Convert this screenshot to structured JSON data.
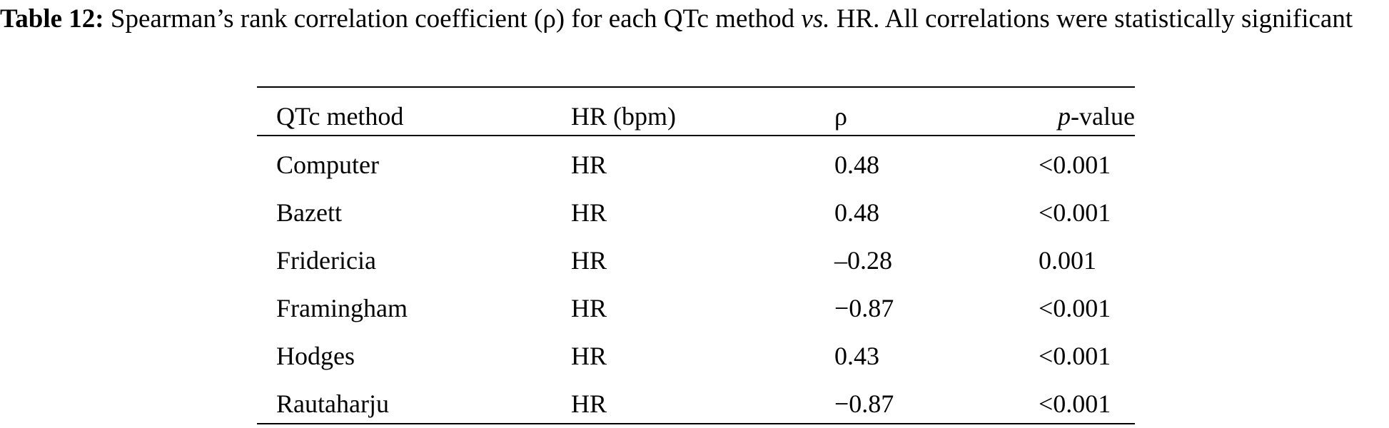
{
  "caption": {
    "label": "Table 12:",
    "text_before": "Spearman’s rank correlation coefficient (ρ) for each QTc method ",
    "emphasis": "vs.",
    "text_after": " HR. All correlations were statistically significant"
  },
  "table": {
    "headers": [
      "QTc method",
      "HR (bpm)",
      "ρ",
      {
        "italic": "p",
        "text": "-value"
      }
    ],
    "rows": [
      [
        "Computer",
        "HR",
        "0.48",
        "<0.001"
      ],
      [
        "Bazett",
        "HR",
        "0.48",
        "<0.001"
      ],
      [
        "Fridericia",
        "HR",
        "–0.28",
        "0.001"
      ],
      [
        "Framingham",
        "HR",
        "−0.87",
        "<0.001"
      ],
      [
        "Hodges",
        "HR",
        "0.43",
        "<0.001"
      ],
      [
        "Rautaharju",
        "HR",
        "−0.87",
        "<0.001"
      ]
    ]
  }
}
